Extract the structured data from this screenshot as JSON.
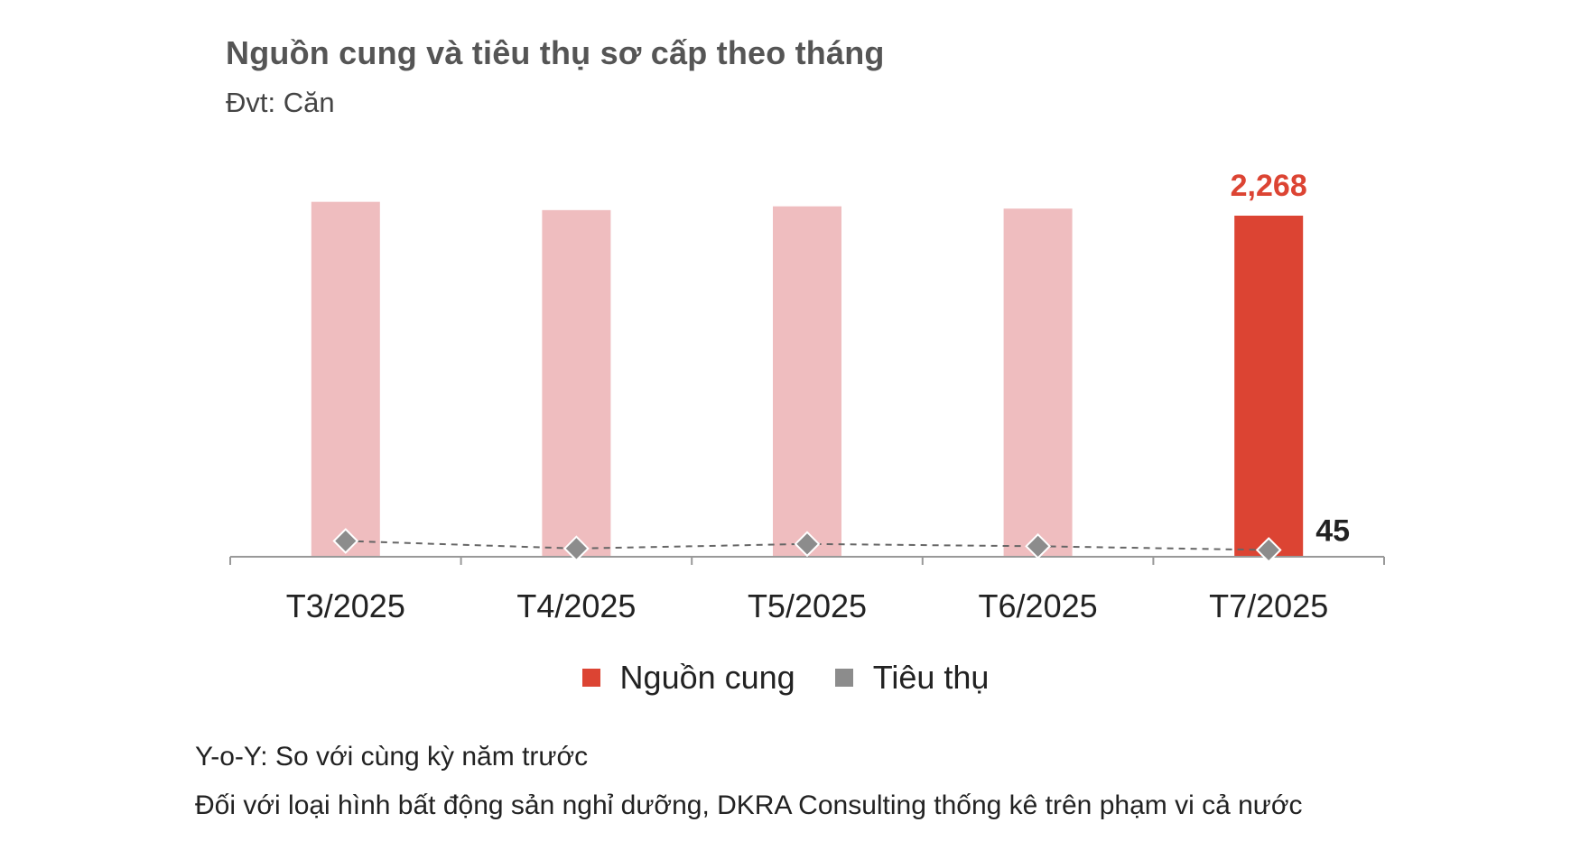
{
  "title": "Nguồn cung và tiêu thụ sơ cấp theo tháng",
  "unit": "Đvt: Căn",
  "notes": [
    "Y-o-Y: So với cùng kỳ năm trước",
    "Đối với loại hình bất động sản nghỉ dưỡng, DKRA Consulting thống kê trên phạm vi cả nước"
  ],
  "colors": {
    "supply_highlight": "#dc4433",
    "supply_faded": "#efbdbf",
    "consumption": "#8c8c8c",
    "axis": "#999999",
    "supply_label": "#dc4433",
    "consumption_label": "#222222"
  },
  "chart_data": {
    "type": "bar",
    "title": "Nguồn cung và tiêu thụ sơ cấp theo tháng",
    "subtitle": "Đvt: Căn",
    "categories": [
      "T3/2025",
      "T4/2025",
      "T5/2025",
      "T6/2025",
      "T7/2025"
    ],
    "series": [
      {
        "name": "Nguồn cung",
        "type": "bar",
        "values": [
          2360,
          2305,
          2330,
          2315,
          2268
        ],
        "labels": [
          null,
          null,
          null,
          null,
          "2,268"
        ]
      },
      {
        "name": "Tiêu thụ",
        "type": "line",
        "style": "dashed",
        "marker": "diamond",
        "values": [
          105,
          55,
          85,
          70,
          45
        ],
        "labels": [
          null,
          null,
          null,
          null,
          "45"
        ]
      }
    ],
    "highlight_index": 4,
    "ylim": [
      0,
      2400
    ],
    "grid": false,
    "legend": "bottom"
  }
}
